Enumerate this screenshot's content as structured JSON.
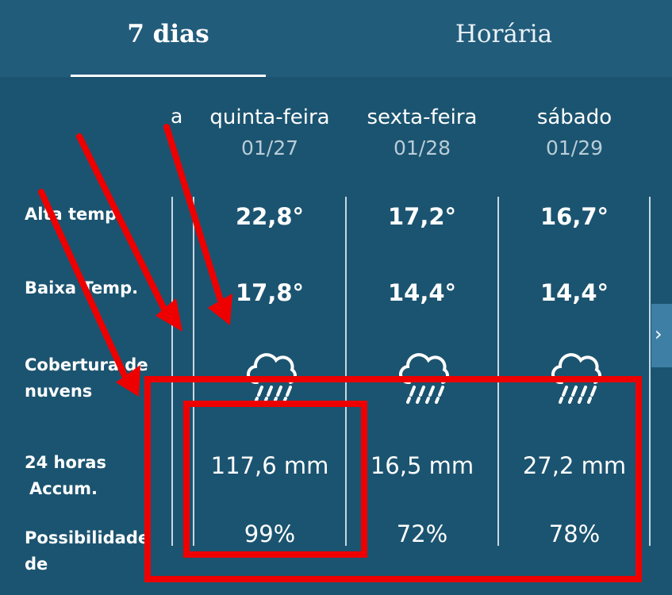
{
  "tabs": [
    {
      "label": "7 dias"
    },
    {
      "label": "Horária"
    }
  ],
  "row_labels": {
    "col_header": "a",
    "high_temp": "Alta temp",
    "low_temp": "Baixa Temp.",
    "cloud_cover_1": "Cobertura de",
    "cloud_cover_2": "nuvens",
    "accum_1": "24 horas",
    "accum_2": "Accum.",
    "possibility_1": "Possibilidade",
    "possibility_2": "de"
  },
  "days": [
    {
      "name": "quinta-feira",
      "date": "01/27",
      "high": "22,8°",
      "low": "17,8°",
      "cloud_icon": "rain-cloud-icon",
      "accum": "117,6 mm",
      "prob": "99%"
    },
    {
      "name": "sexta-feira",
      "date": "01/28",
      "high": "17,2°",
      "low": "14,4°",
      "cloud_icon": "rain-cloud-icon",
      "accum": "16,5 mm",
      "prob": "72%"
    },
    {
      "name": "sábado",
      "date": "01/29",
      "high": "16,7°",
      "low": "14,4°",
      "cloud_icon": "rain-cloud-icon",
      "accum": "27,2 mm",
      "prob": "78%"
    }
  ],
  "next_icon": "chevron-right-icon",
  "colors": {
    "background": "#1b5470",
    "tab_bar": "#225c7b",
    "annotation_red": "#ee0000"
  }
}
